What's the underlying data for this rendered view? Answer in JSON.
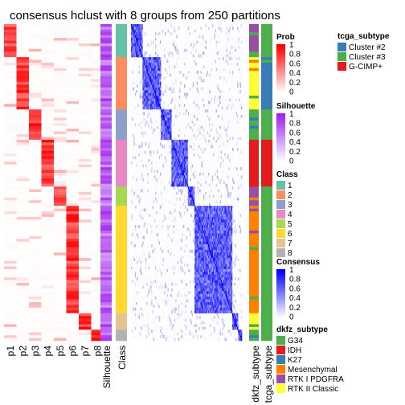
{
  "chart_data": {
    "type": "heatmap",
    "title": "consensus hclust with 8 groups from 250 partitions",
    "columns": [
      "p1",
      "p2",
      "p3",
      "p4",
      "p5",
      "p6",
      "p7",
      "p8",
      "Silhouette",
      "Class",
      "dkfz_subtype",
      "tcga_subtype"
    ],
    "class_groups": [
      {
        "class": "1",
        "rows": 12
      },
      {
        "class": "2",
        "rows": 19
      },
      {
        "class": "3",
        "rows": 11
      },
      {
        "class": "4",
        "rows": 17
      },
      {
        "class": "5",
        "rows": 7
      },
      {
        "class": "6",
        "rows": 39
      },
      {
        "class": "7",
        "rows": 6
      },
      {
        "class": "8",
        "rows": 4
      }
    ],
    "legends": {
      "tcga_subtype": {
        "title": "tcga_subtype",
        "items": [
          {
            "label": "Cluster #2",
            "color": "#377EB8"
          },
          {
            "label": "Cluster #3",
            "color": "#4DAF4A"
          },
          {
            "label": "G-CIMP+",
            "color": "#E41A1C"
          }
        ]
      },
      "prob": {
        "title": "Prob",
        "ticks": [
          "1",
          "0.8",
          "0.6",
          "0.4",
          "0.2",
          "0"
        ],
        "colors": [
          "#ffffff",
          "#ff0000"
        ]
      },
      "silhouette": {
        "title": "Silhouette",
        "ticks": [
          "1",
          "0.8",
          "0.6",
          "0.4",
          "0.2",
          "0"
        ],
        "colors": [
          "#ffffff",
          "#a020f0"
        ]
      },
      "class": {
        "title": "Class",
        "items": [
          {
            "label": "1",
            "color": "#66C2A5"
          },
          {
            "label": "2",
            "color": "#FC8D62"
          },
          {
            "label": "3",
            "color": "#8DA0CB"
          },
          {
            "label": "4",
            "color": "#E78AC3"
          },
          {
            "label": "5",
            "color": "#A6D854"
          },
          {
            "label": "6",
            "color": "#FFD92F"
          },
          {
            "label": "7",
            "color": "#E5C494"
          },
          {
            "label": "8",
            "color": "#B3B3B3"
          }
        ]
      },
      "consensus": {
        "title": "Consensus",
        "ticks": [
          "1",
          "0.8",
          "0.6",
          "0.4",
          "0.2",
          "0"
        ],
        "colors": [
          "#ffffff",
          "#0000ff"
        ]
      },
      "dkfz_subtype": {
        "title": "dkfz_subtype",
        "items": [
          {
            "label": "G34",
            "color": "#4DAF4A"
          },
          {
            "label": "IDH",
            "color": "#E41A1C"
          },
          {
            "label": "K27",
            "color": "#377EB8"
          },
          {
            "label": "Mesenchymal",
            "color": "#FF7F00"
          },
          {
            "label": "RTK I PDGFRA",
            "color": "#984EA3"
          },
          {
            "label": "RTK II Classic",
            "color": "#FFFF33"
          }
        ]
      }
    }
  }
}
